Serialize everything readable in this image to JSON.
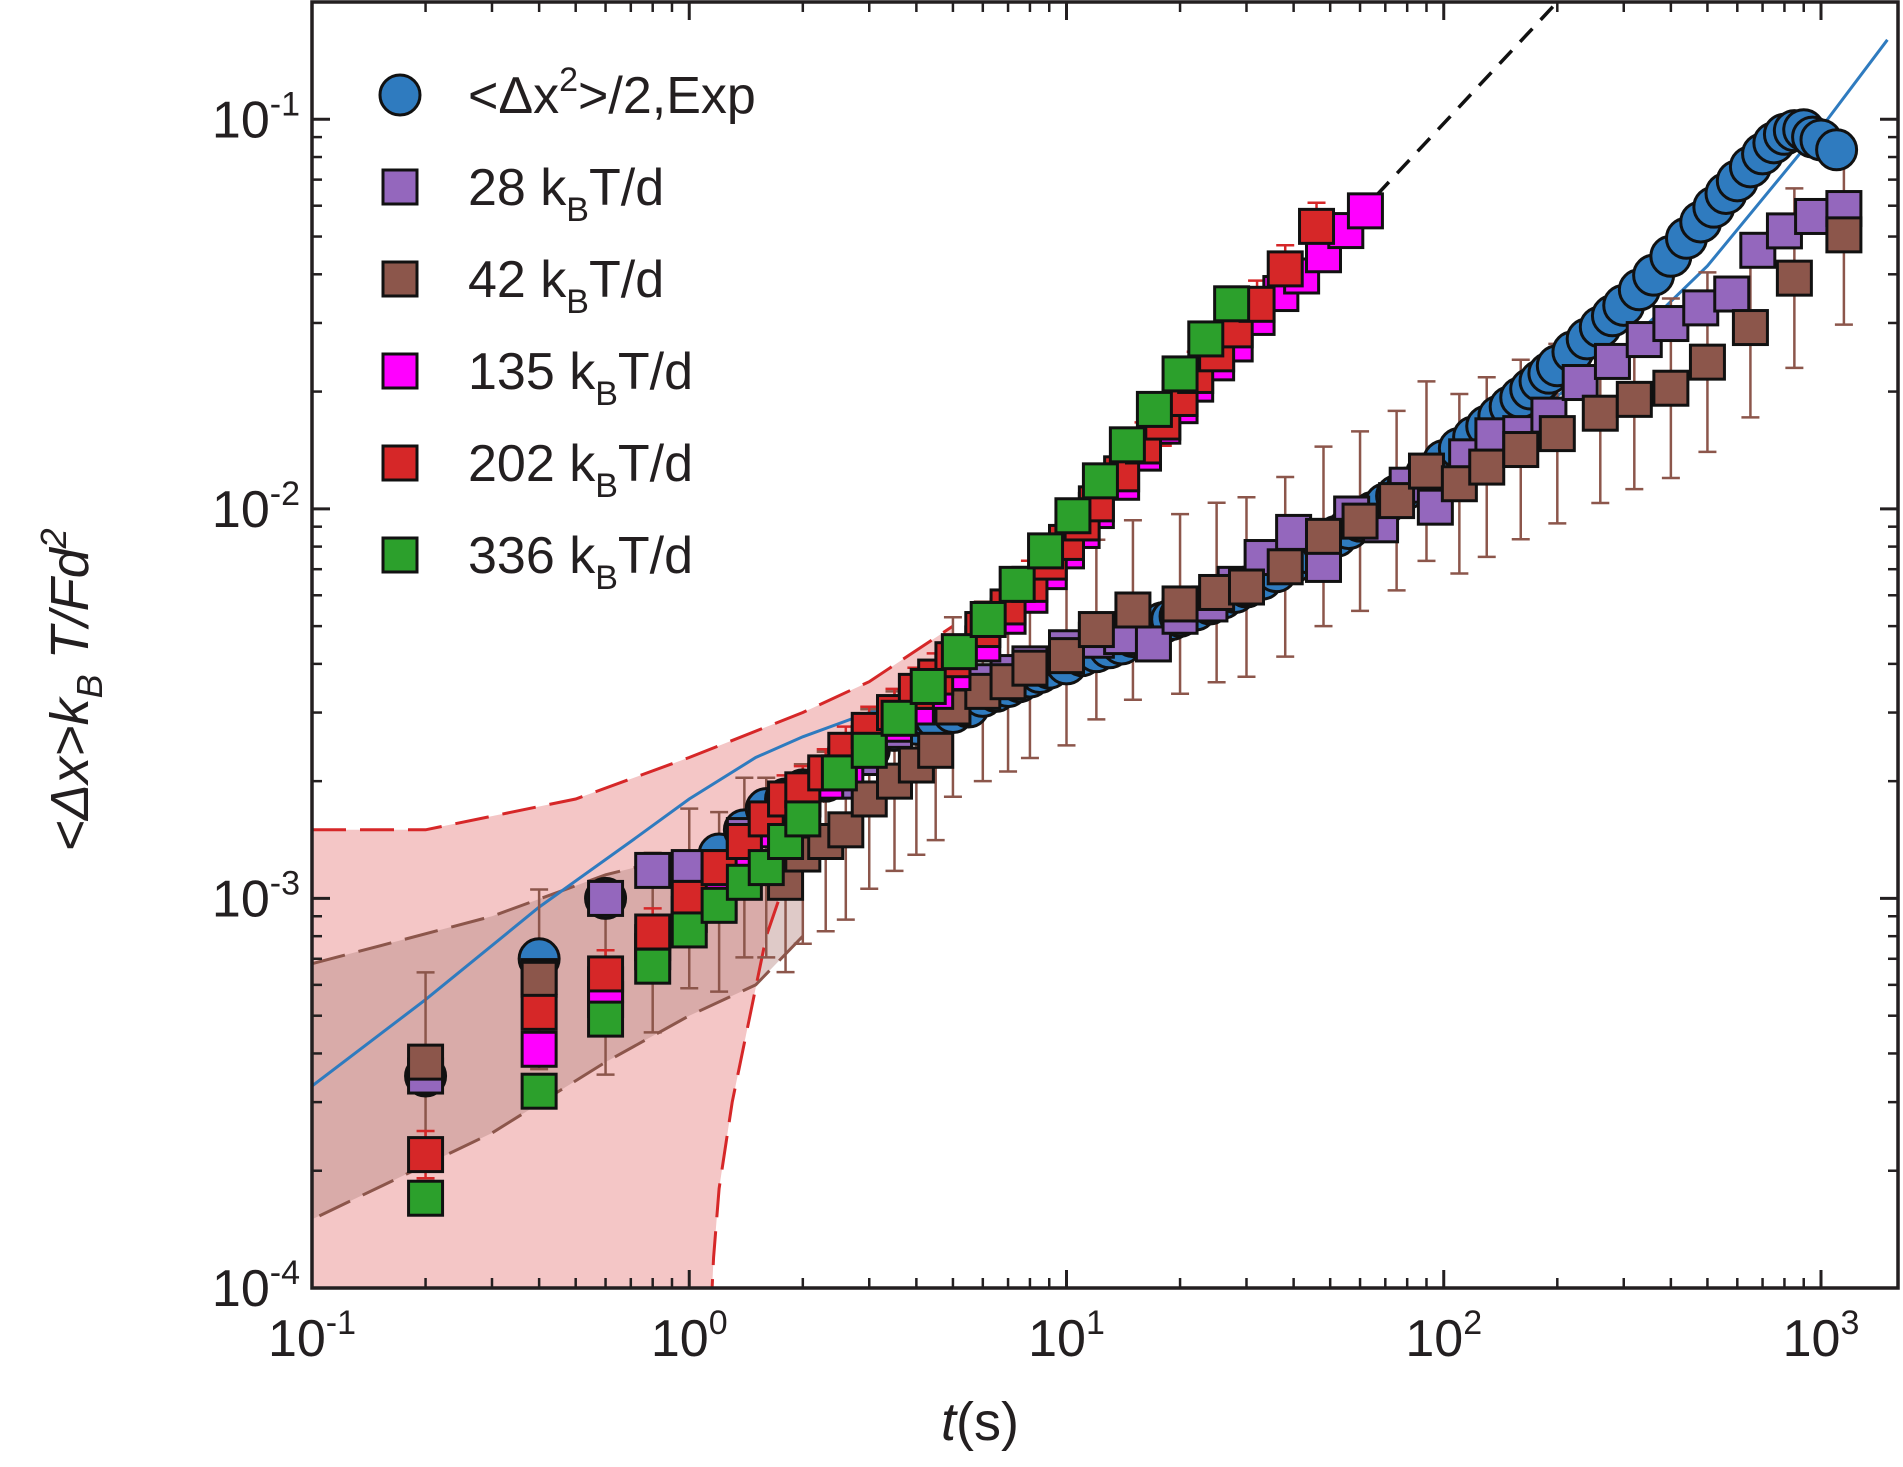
{
  "chart_data": {
    "type": "scatter",
    "xscale": "log",
    "yscale": "log",
    "xlim": [
      0.1,
      1600
    ],
    "ylim": [
      0.0001,
      0.2
    ],
    "xlabel": {
      "italic": "t",
      "rest": "(s)"
    },
    "ylabel": {
      "part1": "<Δx>k",
      "sub": "B",
      "part2": " T/Fd",
      "sup": "2"
    },
    "x_ticks": [
      {
        "value": 0.1,
        "base": "10",
        "exp": "-1"
      },
      {
        "value": 1,
        "base": "10",
        "exp": "0"
      },
      {
        "value": 10,
        "base": "10",
        "exp": "1"
      },
      {
        "value": 100,
        "base": "10",
        "exp": "2"
      },
      {
        "value": 1000,
        "base": "10",
        "exp": "3"
      }
    ],
    "y_ticks": [
      {
        "value": 0.0001,
        "base": "10",
        "exp": "-4"
      },
      {
        "value": 0.001,
        "base": "10",
        "exp": "-3"
      },
      {
        "value": 0.01,
        "base": "10",
        "exp": "-2"
      },
      {
        "value": 0.1,
        "base": "10",
        "exp": "-1"
      }
    ],
    "series": [
      {
        "name": "exp",
        "marker": "circle",
        "color": "#2f7bbf",
        "legend": {
          "pre": "<Δx",
          "sup": "2",
          "post": ">/2,Exp"
        },
        "x": [
          0.2,
          0.4,
          0.6,
          1.0,
          1.2,
          1.4,
          1.6,
          1.8,
          2.0,
          2.3,
          2.6,
          3.0,
          3.5,
          4.0,
          4.5,
          5.0,
          5.5,
          6.0,
          6.5,
          7.0,
          7.5,
          8.0,
          8.5,
          9.0,
          10,
          11,
          12,
          13,
          14,
          15,
          16,
          17,
          18,
          19,
          20,
          22,
          24,
          26,
          28,
          30,
          33,
          36,
          40,
          44,
          48,
          52,
          56,
          60,
          65,
          70,
          75,
          80,
          90,
          100,
          110,
          120,
          130,
          140,
          150,
          160,
          170,
          180,
          190,
          200,
          220,
          240,
          260,
          280,
          300,
          330,
          360,
          400,
          440,
          480,
          520,
          560,
          600,
          650,
          700,
          750,
          800,
          850,
          900,
          950,
          1000,
          1100
        ],
        "y": [
          0.00035,
          0.0007,
          0.001,
          0.00117,
          0.0013,
          0.0015,
          0.0017,
          0.0018,
          0.0019,
          0.002,
          0.0022,
          0.0024,
          0.0027,
          0.0028,
          0.0029,
          0.003,
          0.0031,
          0.0033,
          0.0034,
          0.0035,
          0.0036,
          0.0037,
          0.0038,
          0.0039,
          0.004,
          0.0042,
          0.0043,
          0.0044,
          0.0045,
          0.0047,
          0.0048,
          0.005,
          0.0051,
          0.0052,
          0.0053,
          0.0055,
          0.0057,
          0.0059,
          0.0061,
          0.0063,
          0.0066,
          0.0069,
          0.0073,
          0.0077,
          0.0081,
          0.0085,
          0.0089,
          0.0093,
          0.0098,
          0.0103,
          0.0108,
          0.0113,
          0.0123,
          0.0133,
          0.0143,
          0.0153,
          0.0163,
          0.0173,
          0.0183,
          0.0193,
          0.0203,
          0.0213,
          0.0223,
          0.0233,
          0.0253,
          0.0273,
          0.0293,
          0.0313,
          0.0333,
          0.0365,
          0.0398,
          0.0445,
          0.0495,
          0.0545,
          0.0595,
          0.0645,
          0.0695,
          0.0755,
          0.0815,
          0.087,
          0.0915,
          0.0935,
          0.094,
          0.09,
          0.0885,
          0.0835
        ]
      },
      {
        "name": "s28",
        "marker": "square",
        "color": "#9467bd",
        "legend": {
          "pre": "28 k",
          "sub": "B",
          "post": "T/d"
        },
        "x": [
          0.2,
          0.4,
          0.6,
          0.8,
          1.0,
          1.2,
          1.4,
          1.6,
          1.8,
          2.0,
          2.5,
          3.0,
          3.5,
          4.0,
          4.5,
          5.0,
          6.0,
          7.0,
          8.0,
          10,
          12,
          14,
          17,
          20,
          24,
          28,
          33,
          40,
          48,
          57,
          68,
          80,
          95,
          115,
          135,
          160,
          190,
          230,
          280,
          340,
          400,
          480,
          580,
          680,
          800,
          950,
          1150
        ],
        "y": [
          0.00035,
          0.00063,
          0.001,
          0.00118,
          0.0012,
          0.0012,
          0.00145,
          0.00155,
          0.0017,
          0.0018,
          0.002,
          0.0023,
          0.0027,
          0.0031,
          0.0031,
          0.0035,
          0.0036,
          0.0038,
          0.004,
          0.0044,
          0.0046,
          0.0047,
          0.0045,
          0.0053,
          0.0057,
          0.0064,
          0.0075,
          0.0087,
          0.0072,
          0.0097,
          0.0091,
          0.0115,
          0.0101,
          0.0136,
          0.0154,
          0.0156,
          0.0174,
          0.0211,
          0.0239,
          0.0272,
          0.0299,
          0.0328,
          0.0356,
          0.0461,
          0.0517,
          0.0563,
          0.059
        ]
      },
      {
        "name": "s42",
        "marker": "square",
        "color": "#8c564b",
        "legend": {
          "pre": "42 k",
          "sub": "B",
          "post": "T/d"
        },
        "x": [
          0.2,
          0.4,
          0.6,
          0.8,
          1.0,
          1.2,
          1.4,
          1.6,
          1.8,
          2.0,
          2.3,
          2.6,
          3.0,
          3.5,
          4.0,
          4.5,
          5.0,
          6.0,
          7.0,
          8.0,
          10,
          12,
          15,
          20,
          25,
          30,
          38,
          48,
          60,
          75,
          90,
          110,
          130,
          160,
          200,
          260,
          320,
          400,
          500,
          650,
          850,
          1150
        ],
        "y": [
          0.00038,
          0.00062,
          0.0006,
          0.00077,
          0.001,
          0.00098,
          0.0012,
          0.0012,
          0.0011,
          0.0013,
          0.0014,
          0.0015,
          0.0018,
          0.002,
          0.0022,
          0.0024,
          0.0031,
          0.0034,
          0.0036,
          0.0039,
          0.0042,
          0.0049,
          0.0055,
          0.0057,
          0.0061,
          0.0063,
          0.0071,
          0.0085,
          0.0093,
          0.0105,
          0.0125,
          0.0116,
          0.0128,
          0.0142,
          0.0156,
          0.0176,
          0.0191,
          0.0204,
          0.0238,
          0.0292,
          0.0391,
          0.0505
        ]
      },
      {
        "name": "s135",
        "marker": "square",
        "color": "#ff00ff",
        "legend": {
          "pre": "135 k",
          "sub": "B",
          "post": "T/d"
        },
        "x": [
          0.4,
          0.6,
          0.8,
          1.0,
          1.2,
          1.4,
          1.6,
          1.8,
          2.0,
          2.3,
          2.6,
          3.0,
          3.5,
          4.0,
          4.5,
          5.0,
          6.0,
          7.0,
          8.0,
          9.0,
          10,
          11,
          12,
          14,
          16,
          18,
          20,
          22,
          25,
          28,
          32,
          37,
          42,
          48,
          55,
          62
        ],
        "y": [
          0.00041,
          0.00055,
          0.00073,
          0.00091,
          0.0011,
          0.0013,
          0.0015,
          0.0017,
          0.0018,
          0.002,
          0.0022,
          0.0025,
          0.0028,
          0.0031,
          0.0034,
          0.0038,
          0.0045,
          0.0053,
          0.006,
          0.0069,
          0.0078,
          0.0088,
          0.0099,
          0.0117,
          0.0139,
          0.0163,
          0.0184,
          0.0209,
          0.0237,
          0.0265,
          0.031,
          0.0357,
          0.0396,
          0.0449,
          0.0518,
          0.0582
        ]
      },
      {
        "name": "s202",
        "marker": "square",
        "color": "#d62728",
        "legend": {
          "pre": "202 k",
          "sub": "B",
          "post": "T/d"
        },
        "x": [
          0.2,
          0.4,
          0.6,
          0.8,
          1.0,
          1.2,
          1.4,
          1.6,
          1.8,
          2.0,
          2.3,
          2.6,
          3.0,
          3.5,
          4.0,
          4.5,
          5.0,
          6.0,
          7.0,
          8.0,
          9.0,
          10,
          11,
          12,
          14,
          16,
          18,
          20,
          22,
          25,
          28,
          32,
          38,
          46
        ],
        "y": [
          0.00022,
          0.00051,
          0.00064,
          0.00082,
          0.001,
          0.0012,
          0.0014,
          0.0016,
          0.0018,
          0.0019,
          0.0021,
          0.0024,
          0.0027,
          0.003,
          0.0034,
          0.0037,
          0.0041,
          0.0049,
          0.0056,
          0.0064,
          0.0073,
          0.0082,
          0.0092,
          0.0103,
          0.0123,
          0.0145,
          0.0167,
          0.0192,
          0.022,
          0.025,
          0.0288,
          0.0335,
          0.0413,
          0.0531
        ]
      },
      {
        "name": "s336",
        "marker": "square",
        "color": "#2ca02c",
        "legend": {
          "pre": "336 k",
          "sub": "B",
          "post": "T/d"
        },
        "x": [
          0.2,
          0.4,
          0.6,
          0.8,
          1.0,
          1.2,
          1.4,
          1.6,
          1.8,
          2.0,
          2.5,
          3.0,
          3.6,
          4.3,
          5.2,
          6.2,
          7.4,
          8.8,
          10.4,
          12.3,
          14.5,
          17.1,
          20.0,
          23.4,
          27.4
        ],
        "y": [
          0.00017,
          0.00032,
          0.00049,
          0.00067,
          0.00083,
          0.00096,
          0.0011,
          0.0012,
          0.0014,
          0.0016,
          0.0021,
          0.0024,
          0.0029,
          0.0035,
          0.0043,
          0.0052,
          0.0064,
          0.0078,
          0.0096,
          0.0118,
          0.0146,
          0.018,
          0.0222,
          0.0273,
          0.0336
        ]
      }
    ],
    "fit_line": {
      "x": [
        0.1,
        0.2,
        0.4,
        0.7,
        1.0,
        1.5,
        2.0,
        3.0,
        5.0,
        10,
        20,
        50,
        100,
        200,
        300,
        500,
        1000,
        1500
      ],
      "y": [
        0.00033,
        0.00055,
        0.00095,
        0.0014,
        0.0018,
        0.0023,
        0.0026,
        0.003,
        0.0034,
        0.0042,
        0.0055,
        0.0085,
        0.0128,
        0.0195,
        0.026,
        0.042,
        0.095,
        0.16
      ]
    },
    "dashed_line": {
      "x": [
        2.0,
        200
      ],
      "y": [
        0.0017,
        0.2
      ]
    },
    "band_upper": {
      "x": [
        0.1,
        0.2,
        0.5,
        1.0,
        2.0,
        3.0,
        5.0
      ],
      "y": [
        0.0015,
        0.0015,
        0.0018,
        0.0023,
        0.003,
        0.0036,
        0.005
      ]
    },
    "band_lower": {
      "x": [
        5.0,
        3.0,
        2.0,
        1.6,
        1.3,
        1.2,
        1.16,
        1.15
      ],
      "y": [
        0.0035,
        0.0026,
        0.0015,
        0.0008,
        0.0003,
        0.00018,
        0.00012,
        0.0001
      ]
    },
    "brown_band_upper": {
      "x": [
        0.1,
        0.3,
        0.6,
        1.0,
        1.5,
        2.0
      ],
      "y": [
        0.00068,
        0.0009,
        0.00115,
        0.0013,
        0.0013,
        0.0012
      ]
    },
    "brown_band_lower": {
      "x": [
        2.0,
        1.5,
        1.0,
        0.6,
        0.3,
        0.1
      ],
      "y": [
        0.0008,
        0.0006,
        0.0005,
        0.00038,
        0.00025,
        0.00015
      ]
    }
  }
}
